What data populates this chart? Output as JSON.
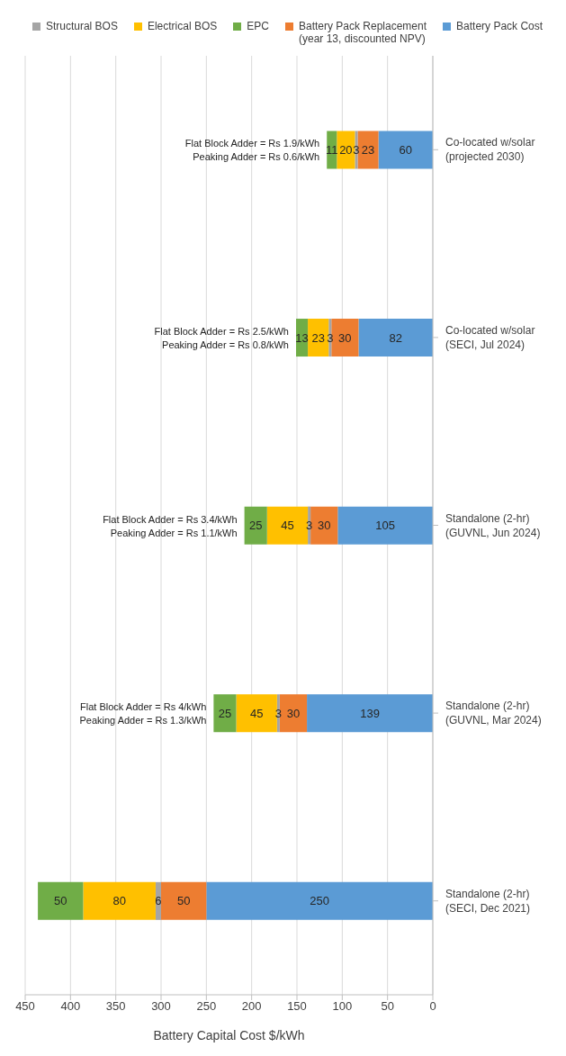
{
  "chart_data": {
    "type": "bar",
    "stacked": true,
    "orientation": "horizontal",
    "xlabel": "Battery Capital Cost $/kWh",
    "categories": [
      "Co-located w/solar\n(projected 2030)",
      "Co-located w/solar\n(SECI, Jul 2024)",
      "Standalone (2-hr)\n(GUVNL, Jun 2024)",
      "Standalone (2-hr)\n(GUVNL, Mar 2024)",
      "Standalone (2-hr)\n(SECI, Dec 2021)"
    ],
    "series": [
      {
        "name": "Battery Pack Cost",
        "color": "#5b9bd5",
        "values": [
          60,
          82,
          105,
          139,
          250
        ]
      },
      {
        "name": "Battery Pack Replacement\n(year 13, discounted NPV)",
        "color": "#ed7d31",
        "values": [
          23,
          30,
          30,
          30,
          50
        ]
      },
      {
        "name": "Structural BOS",
        "color": "#a5a5a5",
        "values": [
          3,
          3,
          3,
          3,
          6
        ]
      },
      {
        "name": "Electrical BOS",
        "color": "#ffc000",
        "values": [
          20,
          23,
          45,
          45,
          80
        ]
      },
      {
        "name": "EPC",
        "color": "#70ad47",
        "values": [
          11,
          13,
          25,
          25,
          50
        ]
      }
    ],
    "xlim": [
      450,
      0
    ],
    "xticks": [
      450,
      400,
      350,
      300,
      250,
      200,
      150,
      100,
      50,
      0
    ],
    "grid": "x",
    "legend": "top",
    "data_labels": true,
    "annotations": [
      {
        "text": "Flat Block Adder = Rs 1.9/kWh\nPeaking Adder = Rs 0.6/kWh",
        "x": 117,
        "y": "Co-located w/solar\n(projected 2030)"
      },
      {
        "text": "Flat Block Adder = Rs 2.5/kWh\nPeaking Adder = Rs 0.8/kWh",
        "x": 151,
        "y": "Co-located w/solar\n(SECI, Jul 2024)"
      },
      {
        "text": "Flat Block Adder = Rs 3.4/kWh\nPeaking Adder = Rs 1.1/kWh",
        "x": 208,
        "y": "Standalone (2-hr)\n(GUVNL, Jun 2024)"
      },
      {
        "text": "Flat Block Adder = Rs 4/kWh\nPeaking Adder = Rs 1.3/kWh",
        "x": 242,
        "y": "Standalone (2-hr)\n(GUVNL, Mar 2024)"
      }
    ]
  }
}
